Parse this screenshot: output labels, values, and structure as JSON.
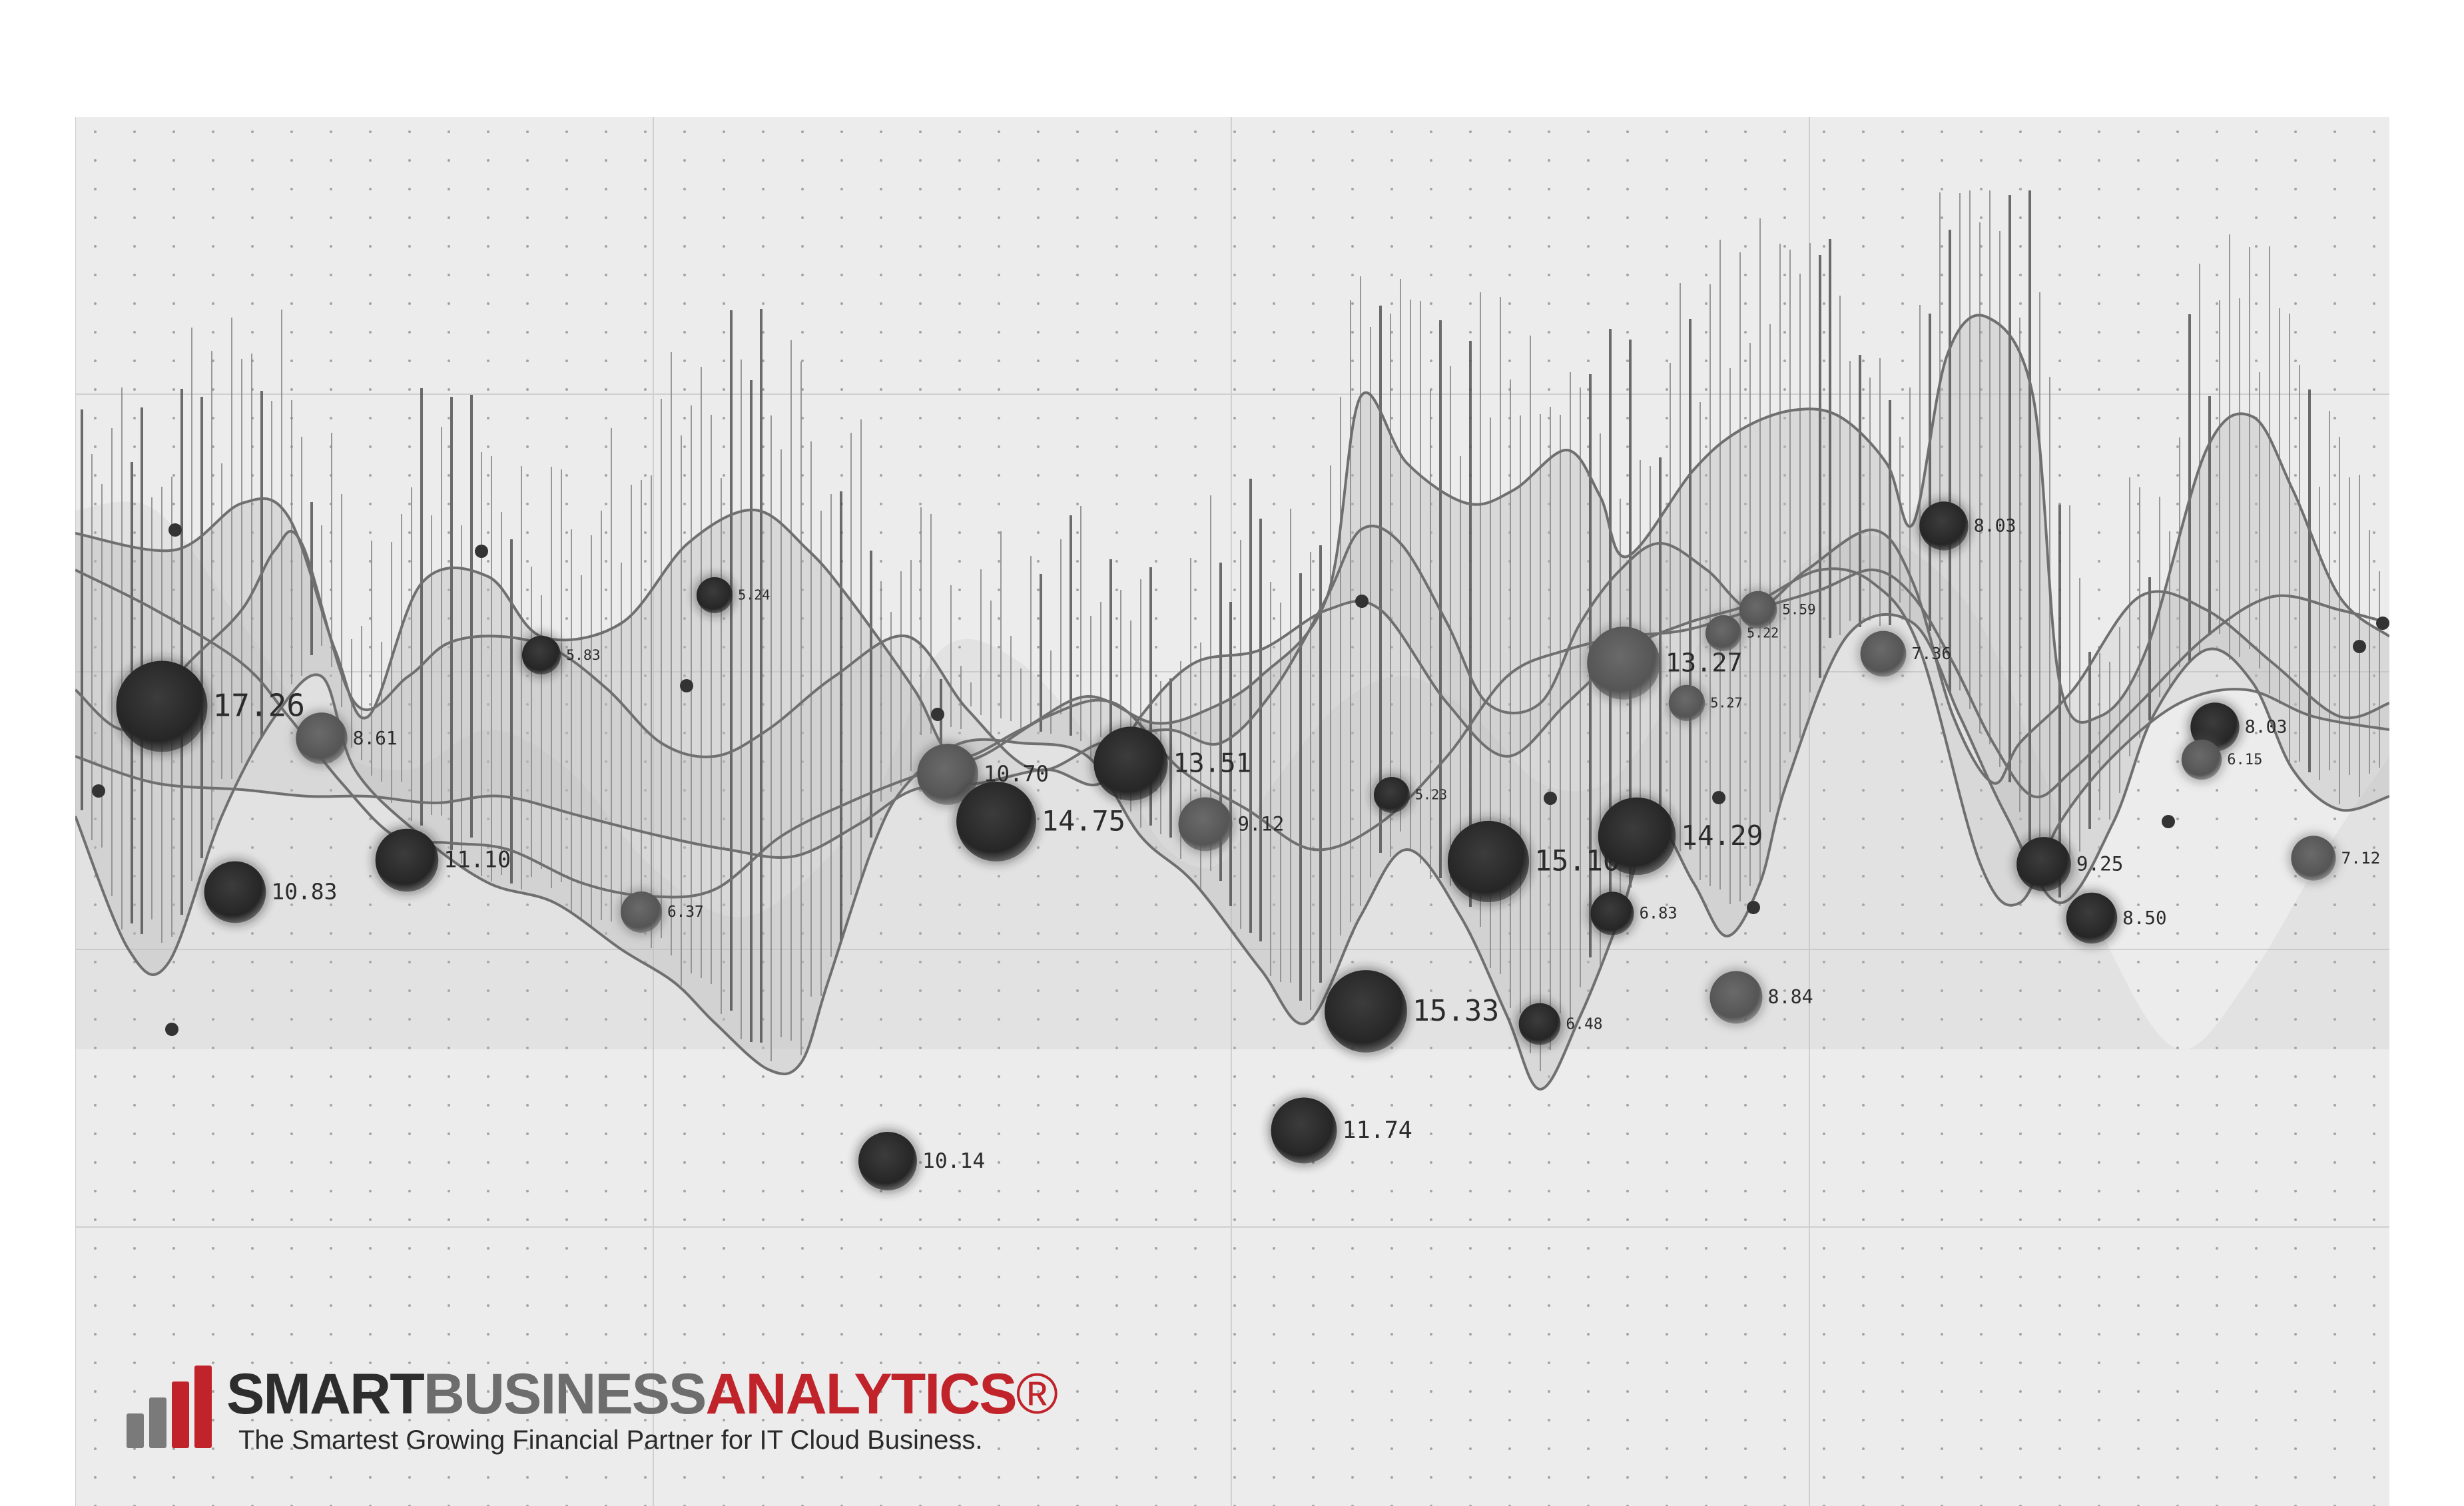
{
  "colors": {
    "panel_bg": "#ececec",
    "grid_line": "#cfcfcf",
    "grid_dot": "#9a9a9a",
    "series_line": "#6f6f6f",
    "band_fill": "#bdbdbd",
    "bubble_dark": "#2f2f2f",
    "bubble_mid": "#5e5e5e",
    "brand_red": "#c1232b",
    "brand_dark": "#2d2d2d",
    "brand_grey": "#6d6d6d"
  },
  "brand": {
    "word1": "SMART",
    "word2": "BUSINESS",
    "word3": "ANALYTICS",
    "registered": "®",
    "tagline": "The Smartest Growing Financial Partner for IT Cloud Business."
  },
  "chart_data": {
    "type": "scatter",
    "title": "",
    "xlabel": "",
    "ylabel": "",
    "grid": true,
    "legend": "none",
    "bubbles": [
      {
        "label": "17.26",
        "size": 17.26,
        "tone": "dark"
      },
      {
        "label": "10.83",
        "size": 10.83,
        "tone": "dark"
      },
      {
        "label": "8.61",
        "size": 8.61,
        "tone": "mid"
      },
      {
        "label": "11.10",
        "size": 11.1,
        "tone": "dark"
      },
      {
        "label": "5.83",
        "size": 5.83,
        "tone": "dark"
      },
      {
        "label": "6.37",
        "size": 6.37,
        "tone": "mid"
      },
      {
        "label": "5.24",
        "size": 5.24,
        "tone": "dark"
      },
      {
        "label": "10.14",
        "size": 10.14,
        "tone": "dark"
      },
      {
        "label": "10.70",
        "size": 10.7,
        "tone": "mid"
      },
      {
        "label": "14.75",
        "size": 14.75,
        "tone": "dark"
      },
      {
        "label": "13.51",
        "size": 13.51,
        "tone": "dark"
      },
      {
        "label": "9.12",
        "size": 9.12,
        "tone": "mid"
      },
      {
        "label": "15.33",
        "size": 15.33,
        "tone": "dark"
      },
      {
        "label": "11.74",
        "size": 11.74,
        "tone": "dark"
      },
      {
        "label": "5.23",
        "size": 5.23,
        "tone": "dark"
      },
      {
        "label": "15.10",
        "size": 15.1,
        "tone": "dark"
      },
      {
        "label": "6.48",
        "size": 6.48,
        "tone": "dark"
      },
      {
        "label": "13.27",
        "size": 13.27,
        "tone": "mid"
      },
      {
        "label": "14.29",
        "size": 14.29,
        "tone": "dark"
      },
      {
        "label": "6.83",
        "size": 6.83,
        "tone": "dark"
      },
      {
        "label": "8.84",
        "size": 8.84,
        "tone": "mid"
      },
      {
        "label": "5.27",
        "size": 5.27,
        "tone": "mid"
      },
      {
        "label": "7.36",
        "size": 7.36,
        "tone": "mid"
      },
      {
        "label": "8.03",
        "size": 8.03,
        "tone": "dark"
      },
      {
        "label": "9.25",
        "size": 9.25,
        "tone": "dark"
      },
      {
        "label": "8.50",
        "size": 8.5,
        "tone": "dark"
      },
      {
        "label": "8.03",
        "size": 8.03,
        "tone": "dark"
      },
      {
        "label": "7.12",
        "size": 7.12,
        "tone": "mid"
      },
      {
        "label": "6.15",
        "size": 6.15,
        "tone": "mid"
      },
      {
        "label": "5.22",
        "size": 5.22,
        "tone": "mid"
      },
      {
        "label": "5.59",
        "size": 5.59,
        "tone": "mid"
      }
    ]
  }
}
